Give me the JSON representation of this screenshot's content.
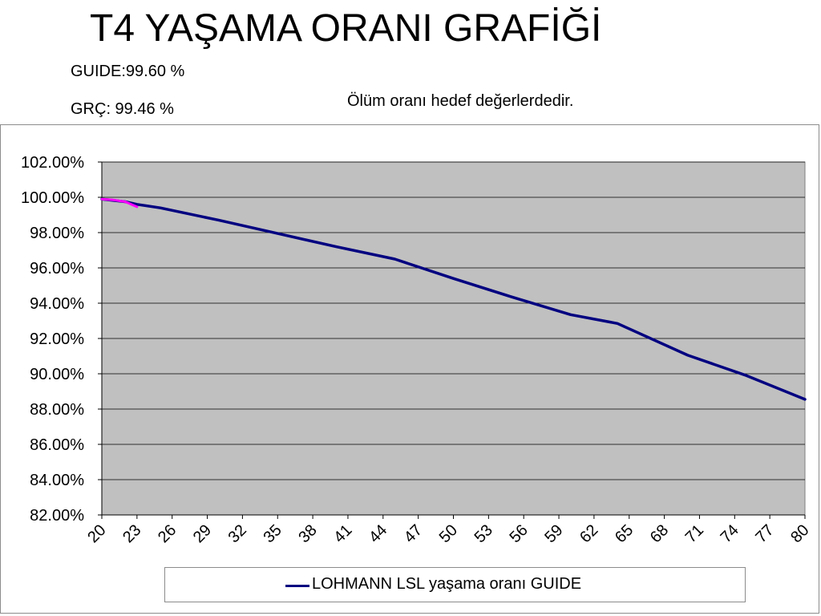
{
  "title": "T4 YAŞAMA ORANI GRAFİĞİ",
  "notes": {
    "guide": "GUIDE:99.60 %",
    "grc": "GRÇ: 99.46 %",
    "status": "Ölüm oranı hedef değerlerdedir."
  },
  "chart_data": {
    "type": "line",
    "title": "",
    "xlabel": "",
    "ylabel": "",
    "ylim": [
      82,
      102
    ],
    "y_ticks": [
      "102.00%",
      "100.00%",
      "98.00%",
      "96.00%",
      "94.00%",
      "92.00%",
      "90.00%",
      "88.00%",
      "86.00%",
      "84.00%",
      "82.00%"
    ],
    "y_tick_values": [
      102,
      100,
      98,
      96,
      94,
      92,
      90,
      88,
      86,
      84,
      82
    ],
    "x_range": [
      20,
      80
    ],
    "x_ticks": [
      20,
      23,
      26,
      29,
      32,
      35,
      38,
      41,
      44,
      47,
      50,
      53,
      56,
      59,
      62,
      65,
      68,
      71,
      74,
      77,
      80
    ],
    "grid": "horizontal",
    "plot_background": "#c0c0c0",
    "legend_position": "bottom",
    "series": [
      {
        "name": "LOHMANN LSL yaşama oranı GUIDE",
        "color": "#000080",
        "x": [
          20,
          22,
          23,
          25,
          30,
          35,
          40,
          45,
          50,
          55,
          60,
          64,
          70,
          75,
          80
        ],
        "y": [
          99.9,
          99.75,
          99.6,
          99.4,
          98.7,
          97.95,
          97.2,
          96.5,
          95.4,
          94.35,
          93.35,
          92.85,
          91.05,
          89.9,
          88.55
        ]
      },
      {
        "name": "",
        "color": "#ff00ff",
        "x": [
          20,
          21,
          22,
          23
        ],
        "y": [
          99.9,
          99.85,
          99.75,
          99.46
        ]
      }
    ]
  }
}
